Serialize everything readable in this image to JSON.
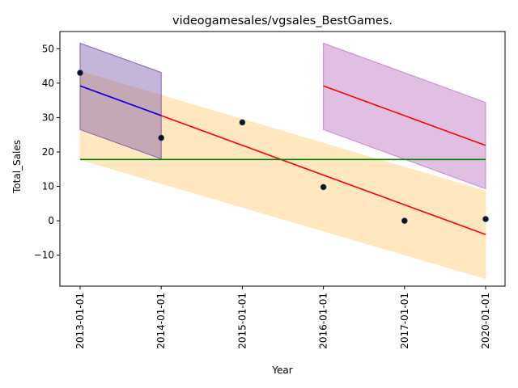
{
  "chart_data": {
    "type": "scatter",
    "title": "videogamesales/vgsales_BestGames.",
    "xlabel": "Year",
    "ylabel": "Total_Sales",
    "x_categories": [
      "2013-01-01",
      "2014-01-01",
      "2015-01-01",
      "2016-01-01",
      "2017-01-01",
      "2020-01-01"
    ],
    "ylim": [
      -19,
      55
    ],
    "yticks": [
      -10,
      0,
      10,
      20,
      30,
      40,
      50
    ],
    "grid": false,
    "points": [
      {
        "x": "2013-01-01",
        "y": 43.0
      },
      {
        "x": "2014-01-01",
        "y": 24.1
      },
      {
        "x": "2015-01-01",
        "y": 28.6
      },
      {
        "x": "2016-01-01",
        "y": 9.8
      },
      {
        "x": "2017-01-01",
        "y": 0.0
      },
      {
        "x": "2020-01-01",
        "y": 0.5
      }
    ],
    "bands": [
      {
        "color": "#ffe4b5",
        "opacity": 0.85,
        "x_from": "2013-01-01",
        "x_to": "2020-01-01",
        "upper": [
          43.4,
          8.6
        ],
        "lower": [
          17.8,
          -16.8
        ]
      },
      {
        "color": "#7e5aa8",
        "opacity": 0.45,
        "x_from": "2013-01-01",
        "x_to": "2014-01-01",
        "upper": [
          51.6,
          43.1
        ],
        "lower": [
          26.5,
          18.0
        ]
      },
      {
        "color": "#c27fc7",
        "opacity": 0.5,
        "x_from": "2016-01-01",
        "x_to": "2020-01-01",
        "upper": [
          51.6,
          34.4
        ],
        "lower": [
          26.5,
          9.3
        ]
      }
    ],
    "lines": [
      {
        "color": "#ff0000",
        "x_from": "2013-01-01",
        "x_to": "2020-01-01",
        "y": [
          39.2,
          -4.0
        ]
      },
      {
        "color": "#ff0000",
        "x_from": "2016-01-01",
        "x_to": "2020-01-01",
        "y": [
          39.2,
          21.9
        ]
      },
      {
        "color": "#0000ff",
        "x_from": "2013-01-01",
        "x_to": "2014-01-01",
        "y": [
          39.2,
          30.6
        ]
      },
      {
        "color": "#008000",
        "x_from": "2013-01-01",
        "x_to": "2020-01-01",
        "y": [
          17.8,
          17.8
        ]
      }
    ]
  }
}
